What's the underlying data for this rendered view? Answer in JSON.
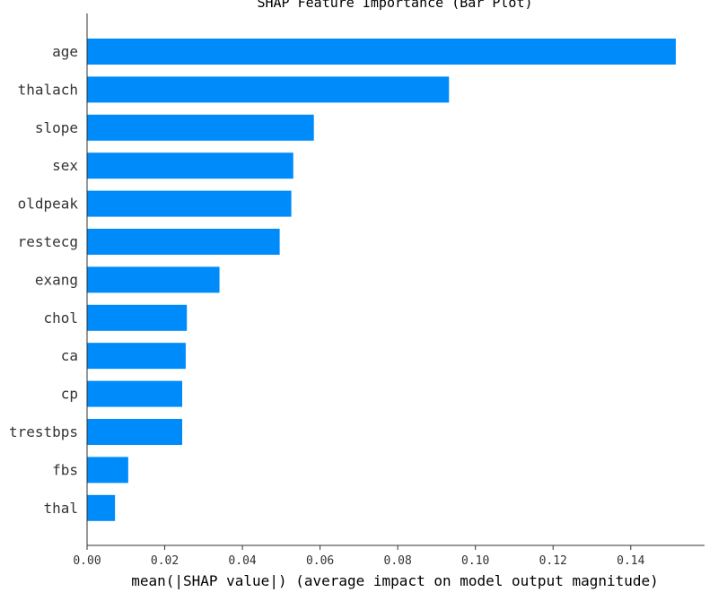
{
  "chart_data": {
    "type": "bar",
    "orientation": "horizontal",
    "title": "SHAP Feature Importance (Bar Plot)",
    "xlabel": "mean(|SHAP value|) (average impact on model output magnitude)",
    "ylabel": "",
    "categories": [
      "age",
      "thalach",
      "slope",
      "sex",
      "oldpeak",
      "restecg",
      "exang",
      "chol",
      "ca",
      "cp",
      "trestbps",
      "fbs",
      "thal"
    ],
    "values": [
      0.1516,
      0.0932,
      0.0584,
      0.0531,
      0.0526,
      0.0496,
      0.0341,
      0.0257,
      0.0254,
      0.0245,
      0.0245,
      0.0106,
      0.0072
    ],
    "xlim": [
      0,
      0.159
    ],
    "xticks": [
      0.0,
      0.02,
      0.04,
      0.06,
      0.08,
      0.1,
      0.12,
      0.14
    ],
    "xtick_labels": [
      "0.00",
      "0.02",
      "0.04",
      "0.06",
      "0.08",
      "0.10",
      "0.12",
      "0.14"
    ],
    "bar_color": "#008bfb",
    "grid": false,
    "legend": "none"
  }
}
